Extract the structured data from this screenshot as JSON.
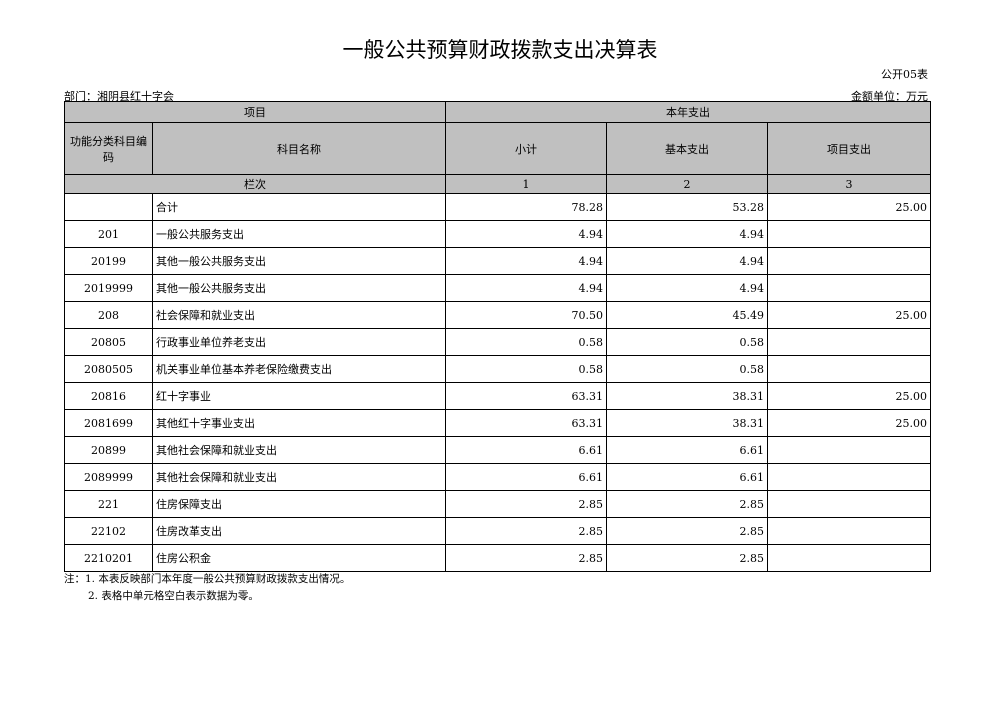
{
  "title": "一般公共预算财政拨款支出决算表",
  "form_no": "公开05表",
  "department": "部门：湘阴县红十字会",
  "unit": "金额单位：万元",
  "header": {
    "item": "项目",
    "this_year": "本年支出",
    "code": "功能分类科目编码",
    "name": "科目名称",
    "subtotal": "小计",
    "basic": "基本支出",
    "project": "项目支出",
    "col_index": "栏次",
    "c1": "1",
    "c2": "2",
    "c3": "3"
  },
  "rows": [
    {
      "code": "",
      "name": "合计",
      "subtotal": "78.28",
      "basic": "53.28",
      "project": "25.00"
    },
    {
      "code": "201",
      "name": "一般公共服务支出",
      "subtotal": "4.94",
      "basic": "4.94",
      "project": ""
    },
    {
      "code": "20199",
      "name": "其他一般公共服务支出",
      "subtotal": "4.94",
      "basic": "4.94",
      "project": ""
    },
    {
      "code": "2019999",
      "name": "其他一般公共服务支出",
      "subtotal": "4.94",
      "basic": "4.94",
      "project": ""
    },
    {
      "code": "208",
      "name": "社会保障和就业支出",
      "subtotal": "70.50",
      "basic": "45.49",
      "project": "25.00"
    },
    {
      "code": "20805",
      "name": "行政事业单位养老支出",
      "subtotal": "0.58",
      "basic": "0.58",
      "project": ""
    },
    {
      "code": "2080505",
      "name": "机关事业单位基本养老保险缴费支出",
      "subtotal": "0.58",
      "basic": "0.58",
      "project": ""
    },
    {
      "code": "20816",
      "name": "红十字事业",
      "subtotal": "63.31",
      "basic": "38.31",
      "project": "25.00"
    },
    {
      "code": "2081699",
      "name": "其他红十字事业支出",
      "subtotal": "63.31",
      "basic": "38.31",
      "project": "25.00"
    },
    {
      "code": "20899",
      "name": "其他社会保障和就业支出",
      "subtotal": "6.61",
      "basic": "6.61",
      "project": ""
    },
    {
      "code": "2089999",
      "name": "其他社会保障和就业支出",
      "subtotal": "6.61",
      "basic": "6.61",
      "project": ""
    },
    {
      "code": "221",
      "name": "住房保障支出",
      "subtotal": "2.85",
      "basic": "2.85",
      "project": ""
    },
    {
      "code": "22102",
      "name": "住房改革支出",
      "subtotal": "2.85",
      "basic": "2.85",
      "project": ""
    },
    {
      "code": "2210201",
      "name": "住房公积金",
      "subtotal": "2.85",
      "basic": "2.85",
      "project": ""
    }
  ],
  "notes": [
    "注：1. 本表反映部门本年度一般公共预算财政拨款支出情况。",
    "2. 表格中单元格空白表示数据为零。"
  ]
}
